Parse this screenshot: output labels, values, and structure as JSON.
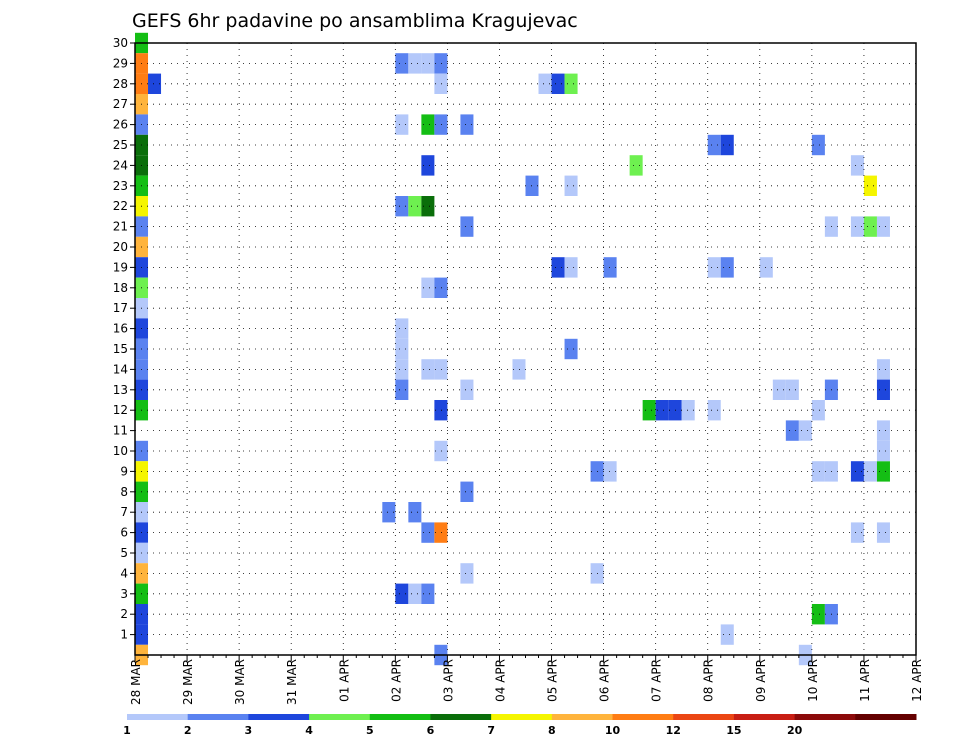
{
  "chart_data": {
    "type": "heatmap",
    "title": "GEFS 6hr padavine po ansamblima Kragujevac",
    "xlabel": "",
    "ylabel": "",
    "y_ticks": [
      "1",
      "2",
      "3",
      "4",
      "5",
      "6",
      "7",
      "8",
      "9",
      "10",
      "11",
      "12",
      "13",
      "14",
      "15",
      "16",
      "17",
      "18",
      "19",
      "20",
      "21",
      "22",
      "23",
      "24",
      "25",
      "26",
      "27",
      "28",
      "29",
      "30"
    ],
    "ylim": [
      0,
      30
    ],
    "x_ticks": [
      "28 MAR",
      "29 MAR",
      "30 MAR",
      "31 MAR",
      "01 APR",
      "02 APR",
      "03 APR",
      "04 APR",
      "05 APR",
      "06 APR",
      "07 APR",
      "08 APR",
      "09 APR",
      "10 APR",
      "11 APR",
      "12 APR"
    ],
    "x_unit": "6-hour steps (4 per day)",
    "xlim": [
      0,
      60
    ],
    "grid": true,
    "colorbar": {
      "ticks": [
        "1",
        "2",
        "3",
        "4",
        "5",
        "6",
        "7",
        "8",
        "10",
        "12",
        "15",
        "20"
      ],
      "bins": [
        {
          "value": 1,
          "color": "#b4c8fa"
        },
        {
          "value": 2,
          "color": "#5a82f0"
        },
        {
          "value": 3,
          "color": "#1e46dc"
        },
        {
          "value": 4,
          "color": "#6ef050"
        },
        {
          "value": 5,
          "color": "#14be14"
        },
        {
          "value": 6,
          "color": "#0a6e0a"
        },
        {
          "value": 7,
          "color": "#f5f500"
        },
        {
          "value": 8,
          "color": "#ffb43c"
        },
        {
          "value": 10,
          "color": "#ff7d14"
        },
        {
          "value": 12,
          "color": "#eb4614"
        },
        {
          "value": 15,
          "color": "#c81e14"
        },
        {
          "value": 20,
          "color": "#8c0a0a"
        },
        {
          "value": 30,
          "color": "#640000"
        }
      ]
    },
    "cells": [
      {
        "x": 0,
        "y": 30,
        "v": 5
      },
      {
        "x": 0,
        "y": 29,
        "v": 10
      },
      {
        "x": 0,
        "y": 28,
        "v": 10
      },
      {
        "x": 0,
        "y": 27,
        "v": 8
      },
      {
        "x": 0,
        "y": 26,
        "v": 2
      },
      {
        "x": 0,
        "y": 25,
        "v": 6
      },
      {
        "x": 0,
        "y": 24,
        "v": 6
      },
      {
        "x": 0,
        "y": 23,
        "v": 5
      },
      {
        "x": 0,
        "y": 22,
        "v": 7
      },
      {
        "x": 0,
        "y": 21,
        "v": 2
      },
      {
        "x": 0,
        "y": 20,
        "v": 8
      },
      {
        "x": 0,
        "y": 19,
        "v": 3
      },
      {
        "x": 0,
        "y": 18,
        "v": 4
      },
      {
        "x": 0,
        "y": 17,
        "v": 1
      },
      {
        "x": 0,
        "y": 16,
        "v": 3
      },
      {
        "x": 0,
        "y": 15,
        "v": 2
      },
      {
        "x": 0,
        "y": 14,
        "v": 2
      },
      {
        "x": 0,
        "y": 13,
        "v": 3
      },
      {
        "x": 0,
        "y": 12,
        "v": 5
      },
      {
        "x": 0,
        "y": 10,
        "v": 2
      },
      {
        "x": 0,
        "y": 9,
        "v": 7
      },
      {
        "x": 0,
        "y": 8,
        "v": 5
      },
      {
        "x": 0,
        "y": 7,
        "v": 1
      },
      {
        "x": 0,
        "y": 6,
        "v": 3
      },
      {
        "x": 0,
        "y": 5,
        "v": 1
      },
      {
        "x": 0,
        "y": 4,
        "v": 8
      },
      {
        "x": 0,
        "y": 3,
        "v": 5
      },
      {
        "x": 0,
        "y": 2,
        "v": 3
      },
      {
        "x": 0,
        "y": 1,
        "v": 3
      },
      {
        "x": 0,
        "y": 0,
        "v": 8
      },
      {
        "x": 1,
        "y": 28,
        "v": 3
      },
      {
        "x": 20,
        "y": 29,
        "v": 2
      },
      {
        "x": 21,
        "y": 29,
        "v": 1
      },
      {
        "x": 22,
        "y": 29,
        "v": 1
      },
      {
        "x": 23,
        "y": 29,
        "v": 2
      },
      {
        "x": 23,
        "y": 28,
        "v": 1
      },
      {
        "x": 20,
        "y": 26,
        "v": 1
      },
      {
        "x": 22,
        "y": 26,
        "v": 5
      },
      {
        "x": 23,
        "y": 26,
        "v": 2
      },
      {
        "x": 25,
        "y": 26,
        "v": 2
      },
      {
        "x": 22,
        "y": 24,
        "v": 3
      },
      {
        "x": 20,
        "y": 22,
        "v": 2
      },
      {
        "x": 21,
        "y": 22,
        "v": 4
      },
      {
        "x": 22,
        "y": 22,
        "v": 6
      },
      {
        "x": 25,
        "y": 21,
        "v": 2
      },
      {
        "x": 22,
        "y": 18,
        "v": 1
      },
      {
        "x": 23,
        "y": 18,
        "v": 2
      },
      {
        "x": 20,
        "y": 16,
        "v": 1
      },
      {
        "x": 20,
        "y": 15,
        "v": 1
      },
      {
        "x": 20,
        "y": 14,
        "v": 1
      },
      {
        "x": 22,
        "y": 14,
        "v": 1
      },
      {
        "x": 23,
        "y": 14,
        "v": 1
      },
      {
        "x": 20,
        "y": 13,
        "v": 2
      },
      {
        "x": 25,
        "y": 13,
        "v": 1
      },
      {
        "x": 23,
        "y": 12,
        "v": 3
      },
      {
        "x": 23,
        "y": 10,
        "v": 1
      },
      {
        "x": 25,
        "y": 8,
        "v": 2
      },
      {
        "x": 19,
        "y": 7,
        "v": 2
      },
      {
        "x": 21,
        "y": 7,
        "v": 2
      },
      {
        "x": 22,
        "y": 6,
        "v": 2
      },
      {
        "x": 23,
        "y": 6,
        "v": 10
      },
      {
        "x": 25,
        "y": 4,
        "v": 1
      },
      {
        "x": 20,
        "y": 3,
        "v": 3
      },
      {
        "x": 21,
        "y": 3,
        "v": 1
      },
      {
        "x": 22,
        "y": 3,
        "v": 2
      },
      {
        "x": 23,
        "y": 0,
        "v": 2
      },
      {
        "x": 31,
        "y": 28,
        "v": 1
      },
      {
        "x": 32,
        "y": 28,
        "v": 3
      },
      {
        "x": 33,
        "y": 28,
        "v": 4
      },
      {
        "x": 30,
        "y": 23,
        "v": 2
      },
      {
        "x": 33,
        "y": 23,
        "v": 1
      },
      {
        "x": 32,
        "y": 19,
        "v": 3
      },
      {
        "x": 33,
        "y": 19,
        "v": 1
      },
      {
        "x": 36,
        "y": 19,
        "v": 2
      },
      {
        "x": 33,
        "y": 15,
        "v": 2
      },
      {
        "x": 29,
        "y": 14,
        "v": 1
      },
      {
        "x": 35,
        "y": 9,
        "v": 2
      },
      {
        "x": 36,
        "y": 9,
        "v": 1
      },
      {
        "x": 35,
        "y": 4,
        "v": 1
      },
      {
        "x": 38,
        "y": 24,
        "v": 4
      },
      {
        "x": 44,
        "y": 25,
        "v": 2
      },
      {
        "x": 45,
        "y": 25,
        "v": 3
      },
      {
        "x": 44,
        "y": 19,
        "v": 1
      },
      {
        "x": 45,
        "y": 19,
        "v": 2
      },
      {
        "x": 48,
        "y": 19,
        "v": 1
      },
      {
        "x": 39,
        "y": 12,
        "v": 5
      },
      {
        "x": 40,
        "y": 12,
        "v": 3
      },
      {
        "x": 41,
        "y": 12,
        "v": 3
      },
      {
        "x": 42,
        "y": 12,
        "v": 1
      },
      {
        "x": 44,
        "y": 12,
        "v": 1
      },
      {
        "x": 45,
        "y": 1,
        "v": 1
      },
      {
        "x": 49,
        "y": 13,
        "v": 1
      },
      {
        "x": 50,
        "y": 13,
        "v": 1
      },
      {
        "x": 50,
        "y": 11,
        "v": 2
      },
      {
        "x": 51,
        "y": 11,
        "v": 1
      },
      {
        "x": 51,
        "y": 0,
        "v": 1
      },
      {
        "x": 52,
        "y": 25,
        "v": 2
      },
      {
        "x": 52,
        "y": 12,
        "v": 1
      },
      {
        "x": 52,
        "y": 9,
        "v": 1
      },
      {
        "x": 53,
        "y": 9,
        "v": 1
      },
      {
        "x": 52,
        "y": 2,
        "v": 5
      },
      {
        "x": 53,
        "y": 2,
        "v": 2
      },
      {
        "x": 53,
        "y": 21,
        "v": 1
      },
      {
        "x": 53,
        "y": 13,
        "v": 2
      },
      {
        "x": 55,
        "y": 24,
        "v": 1
      },
      {
        "x": 56,
        "y": 23,
        "v": 7
      },
      {
        "x": 55,
        "y": 21,
        "v": 1
      },
      {
        "x": 56,
        "y": 21,
        "v": 4
      },
      {
        "x": 57,
        "y": 21,
        "v": 1
      },
      {
        "x": 55,
        "y": 9,
        "v": 3
      },
      {
        "x": 56,
        "y": 9,
        "v": 1
      },
      {
        "x": 57,
        "y": 9,
        "v": 5
      },
      {
        "x": 55,
        "y": 6,
        "v": 1
      },
      {
        "x": 57,
        "y": 6,
        "v": 1
      },
      {
        "x": 57,
        "y": 14,
        "v": 1
      },
      {
        "x": 57,
        "y": 13,
        "v": 3
      },
      {
        "x": 57,
        "y": 11,
        "v": 1
      },
      {
        "x": 57,
        "y": 10,
        "v": 1
      }
    ]
  }
}
